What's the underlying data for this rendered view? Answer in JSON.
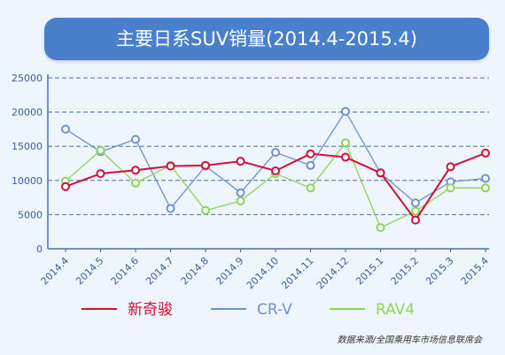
{
  "chart_data": {
    "type": "line",
    "title": "主要日系SUV销量(2014.4-2015.4)",
    "x": [
      "2014.4",
      "2014.5",
      "2014.6",
      "2014.7",
      "2014.8",
      "2014.9",
      "2014.10",
      "2014.11",
      "2014.12",
      "2015.1",
      "2015.2",
      "2015.3",
      "2015.4"
    ],
    "ylim": [
      0,
      25000
    ],
    "yticks": [
      0,
      5000,
      10000,
      15000,
      20000,
      25000
    ],
    "grid": true,
    "legend_position": "bottom",
    "series": [
      {
        "name": "新奇骏",
        "color": "#d0103a",
        "values": [
          9100,
          11000,
          11500,
          12100,
          12200,
          12800,
          11400,
          13900,
          13400,
          11100,
          4200,
          12000,
          14000
        ]
      },
      {
        "name": "CR-V",
        "color": "#6b93cf",
        "values": [
          17500,
          14200,
          16000,
          5900,
          12100,
          8200,
          14100,
          12200,
          20100,
          11100,
          6700,
          9800,
          10300
        ]
      },
      {
        "name": "RAV4",
        "color": "#8fd45a",
        "values": [
          9900,
          14400,
          9600,
          12200,
          5600,
          7000,
          11000,
          8900,
          15500,
          3100,
          5500,
          8900,
          8900
        ]
      }
    ]
  },
  "source_note": "数据来源/全国乘用车市场信息联席会"
}
